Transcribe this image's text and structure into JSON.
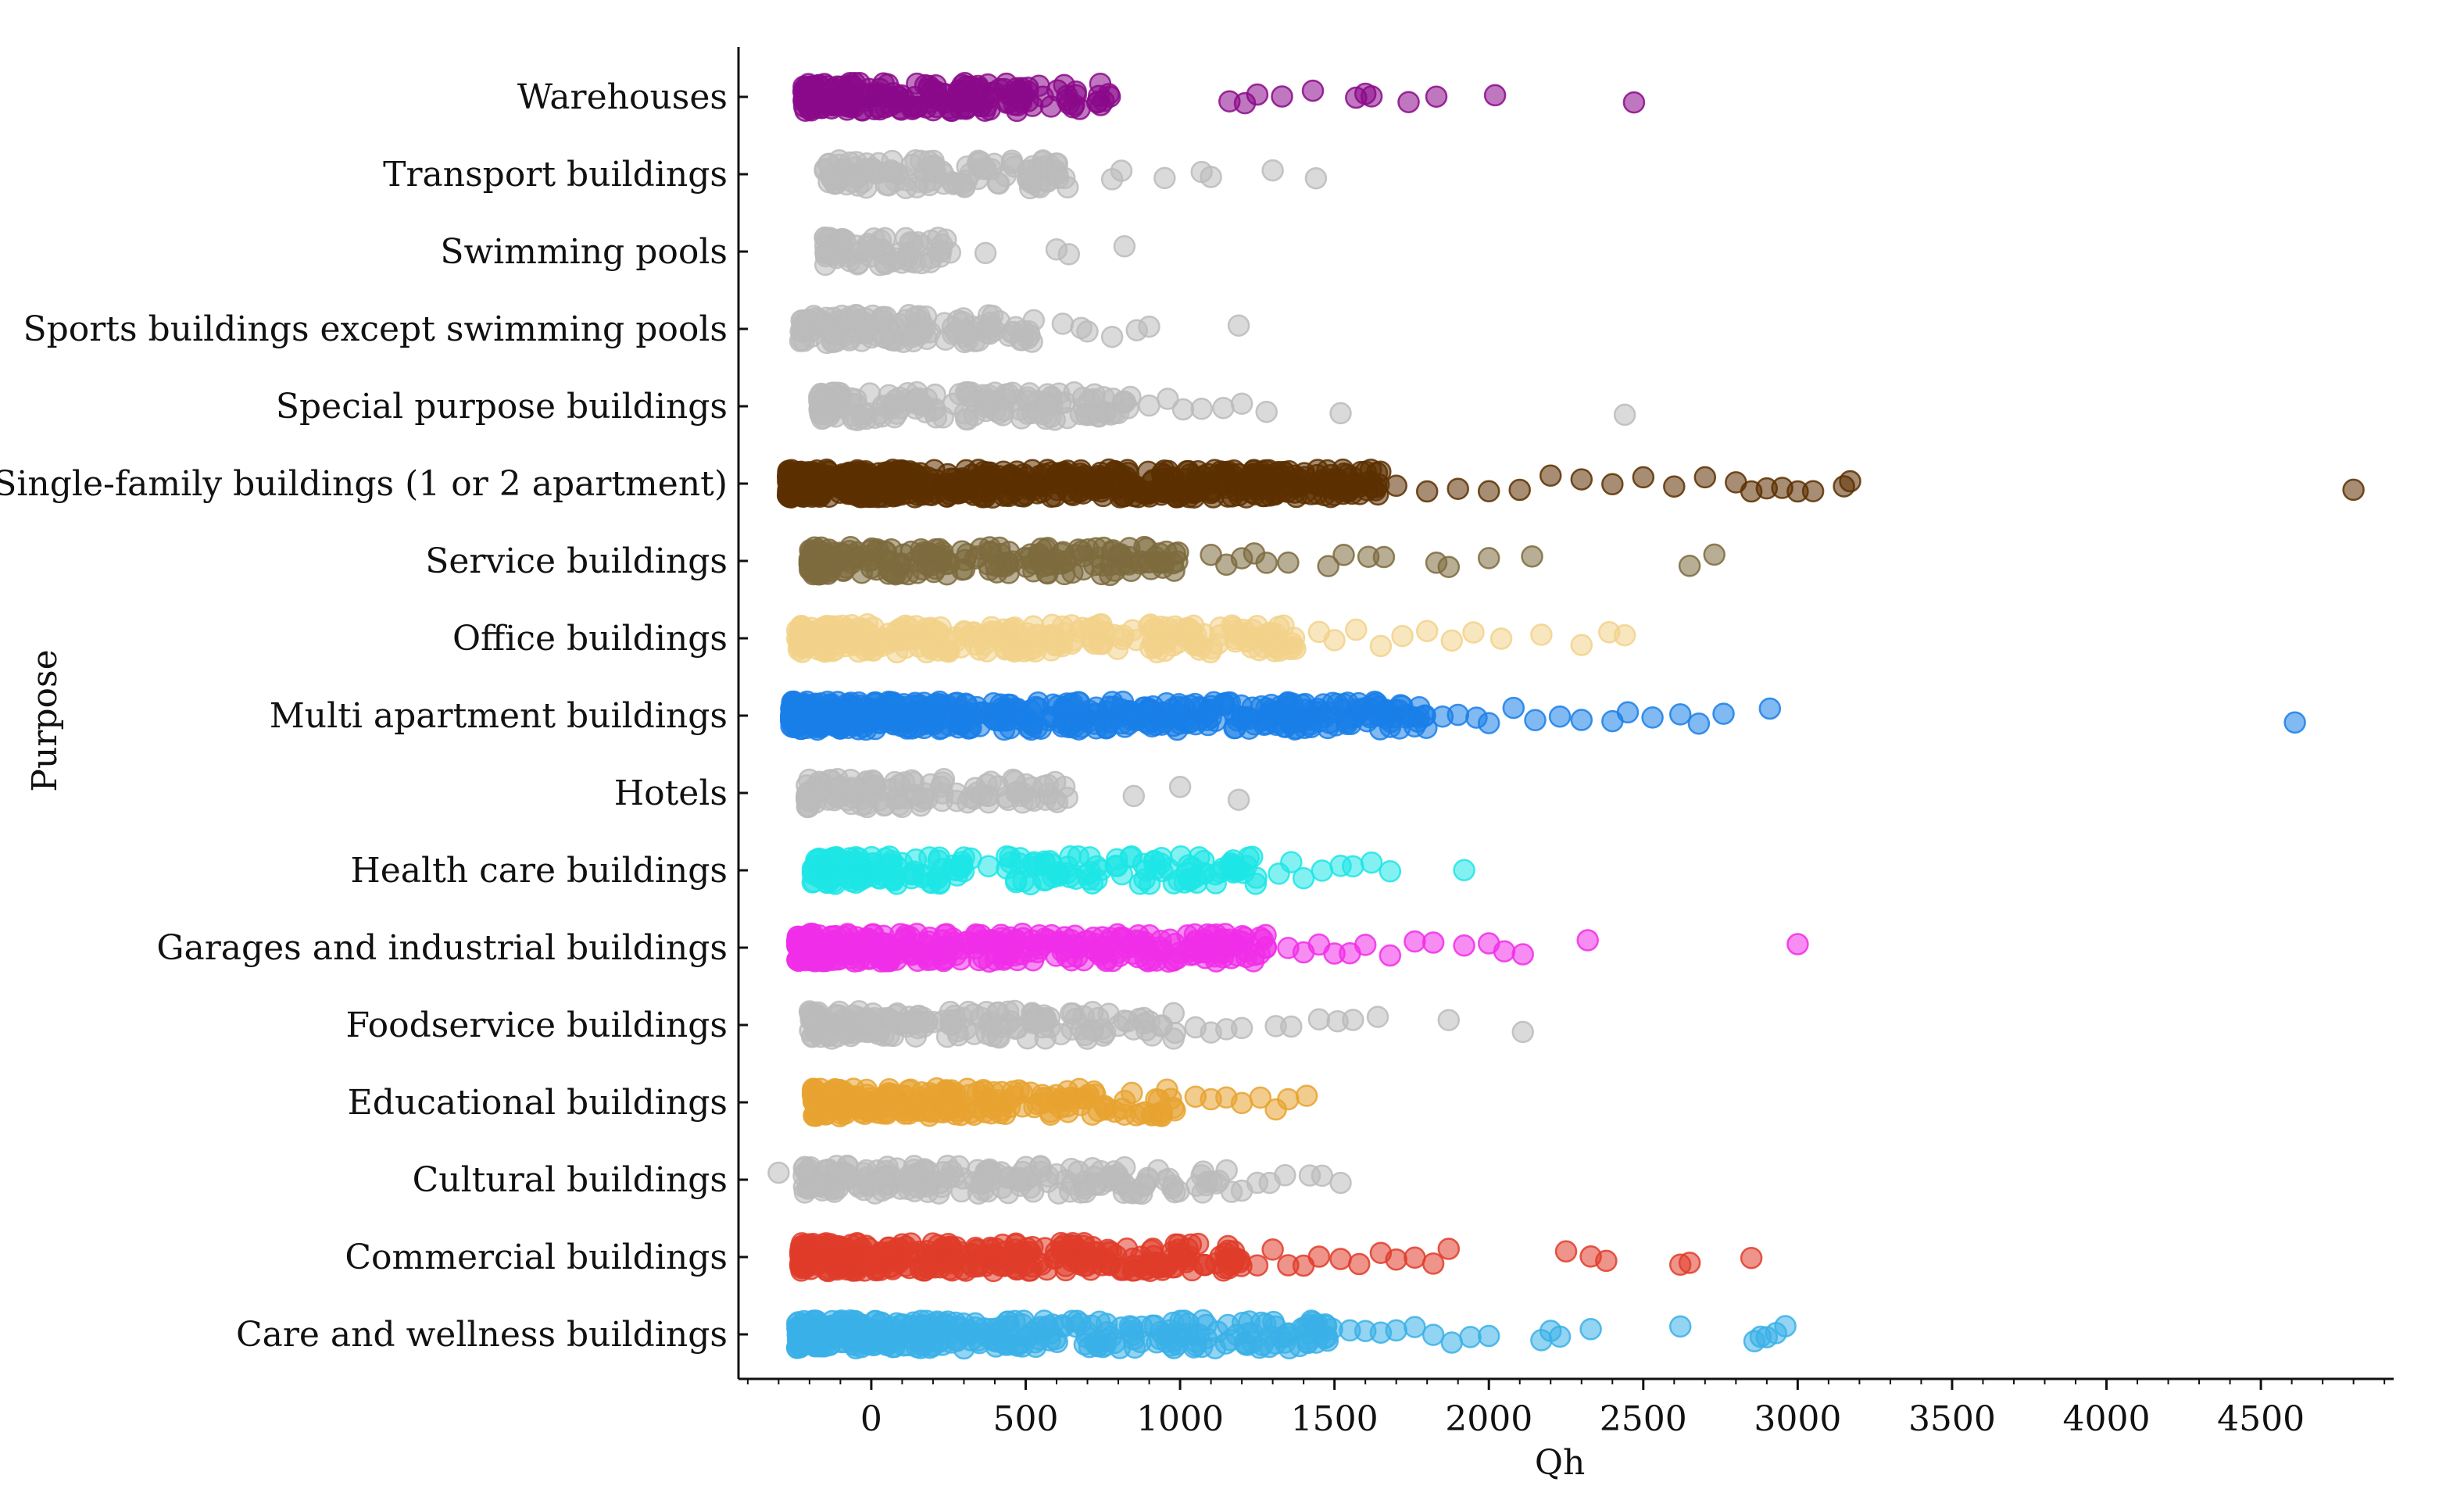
{
  "chart_data": {
    "type": "scatter",
    "subtype": "strip",
    "title": "",
    "xlabel": "Qh",
    "ylabel": "Purpose",
    "xlim": [
      -430,
      4930
    ],
    "xticks": [
      0,
      500,
      1000,
      1500,
      2000,
      2500,
      3000,
      3500,
      4000,
      4500
    ],
    "xtick_labels": [
      "0",
      "500",
      "1000",
      "1500",
      "2000",
      "2500",
      "3000",
      "3500",
      "4000",
      "4500"
    ],
    "grid": false,
    "legend": "none",
    "categories": [
      {
        "name": "Warehouses",
        "color": "#8b0a8b",
        "min": -220,
        "dense_max": 780,
        "n": 70,
        "outliers": [
          1160,
          1210,
          1250,
          1330,
          1430,
          1570,
          1600,
          1620,
          1740,
          1830,
          2020,
          2470
        ]
      },
      {
        "name": "Transport buildings",
        "color": "#bbbbbb",
        "min": -150,
        "dense_max": 650,
        "n": 40,
        "outliers": [
          780,
          810,
          950,
          1070,
          1100,
          1300,
          1440
        ]
      },
      {
        "name": "Swimming pools",
        "color": "#bbbbbb",
        "min": -150,
        "dense_max": 300,
        "n": 25,
        "outliers": [
          370,
          600,
          640,
          820
        ]
      },
      {
        "name": "Sports buildings except swimming pools",
        "color": "#bbbbbb",
        "min": -230,
        "dense_max": 560,
        "n": 45,
        "outliers": [
          620,
          680,
          700,
          780,
          860,
          900,
          1190
        ]
      },
      {
        "name": "Special purpose buildings",
        "color": "#bbbbbb",
        "min": -170,
        "dense_max": 840,
        "n": 55,
        "outliers": [
          900,
          960,
          1010,
          1070,
          1140,
          1200,
          1280,
          1520,
          2440
        ]
      },
      {
        "name": "Single-family buildings (1 or 2 apartment)",
        "color": "#5c3000",
        "min": -270,
        "dense_max": 1650,
        "n": 210,
        "outliers": [
          1700,
          1800,
          1900,
          2000,
          2100,
          2200,
          2300,
          2400,
          2500,
          2600,
          2700,
          2800,
          2850,
          2900,
          2950,
          3000,
          3050,
          3150,
          3170,
          4800
        ]
      },
      {
        "name": "Service buildings",
        "color": "#7d6b3e",
        "min": -200,
        "dense_max": 1000,
        "n": 70,
        "outliers": [
          1100,
          1150,
          1200,
          1240,
          1280,
          1350,
          1480,
          1530,
          1610,
          1660,
          1830,
          1870,
          2000,
          2140,
          2650,
          2730
        ]
      },
      {
        "name": "Office buildings",
        "color": "#f2d28a",
        "min": -240,
        "dense_max": 1380,
        "n": 100,
        "outliers": [
          1450,
          1500,
          1570,
          1650,
          1720,
          1800,
          1880,
          1950,
          2040,
          2170,
          2300,
          2390,
          2440
        ]
      },
      {
        "name": "Multi apartment buildings",
        "color": "#1a7fe8",
        "min": -260,
        "dense_max": 1800,
        "n": 180,
        "outliers": [
          1850,
          1900,
          1960,
          2000,
          2080,
          2150,
          2230,
          2300,
          2400,
          2450,
          2530,
          2620,
          2680,
          2760,
          2910,
          4610
        ]
      },
      {
        "name": "Hotels",
        "color": "#bbbbbb",
        "min": -210,
        "dense_max": 650,
        "n": 40,
        "outliers": [
          850,
          1000,
          1190
        ]
      },
      {
        "name": "Health care buildings",
        "color": "#1ee5e5",
        "min": -190,
        "dense_max": 1250,
        "n": 70,
        "outliers": [
          1320,
          1360,
          1400,
          1460,
          1520,
          1560,
          1620,
          1680,
          1920
        ]
      },
      {
        "name": "Garages and industrial buildings",
        "color": "#f02ee8",
        "min": -240,
        "dense_max": 1300,
        "n": 120,
        "outliers": [
          1350,
          1400,
          1450,
          1500,
          1550,
          1600,
          1680,
          1760,
          1820,
          1920,
          2000,
          2050,
          2110,
          2320,
          3000
        ]
      },
      {
        "name": "Foodservice buildings",
        "color": "#bbbbbb",
        "min": -200,
        "dense_max": 1000,
        "n": 60,
        "outliers": [
          1050,
          1100,
          1150,
          1200,
          1310,
          1360,
          1450,
          1510,
          1560,
          1640,
          1870,
          2110
        ]
      },
      {
        "name": "Educational buildings",
        "color": "#e8a330",
        "min": -190,
        "dense_max": 1000,
        "n": 80,
        "outliers": [
          1050,
          1100,
          1150,
          1200,
          1260,
          1310,
          1350,
          1410
        ]
      },
      {
        "name": "Cultural buildings",
        "color": "#bbbbbb",
        "min": -220,
        "dense_max": 1200,
        "n": 65,
        "outliers": [
          -300,
          1250,
          1290,
          1340,
          1420,
          1460,
          1520
        ]
      },
      {
        "name": "Commercial buildings",
        "color": "#e03c2a",
        "min": -230,
        "dense_max": 1200,
        "n": 120,
        "outliers": [
          1250,
          1300,
          1350,
          1400,
          1450,
          1520,
          1580,
          1650,
          1700,
          1760,
          1820,
          1870,
          2250,
          2330,
          2380,
          2620,
          2650,
          2850
        ]
      },
      {
        "name": "Care and wellness buildings",
        "color": "#3ab0e8",
        "min": -240,
        "dense_max": 1500,
        "n": 120,
        "outliers": [
          1550,
          1600,
          1650,
          1700,
          1760,
          1820,
          1880,
          1940,
          2000,
          2170,
          2200,
          2230,
          2330,
          2620,
          2860,
          2880,
          2900,
          2930,
          2960
        ]
      }
    ]
  }
}
